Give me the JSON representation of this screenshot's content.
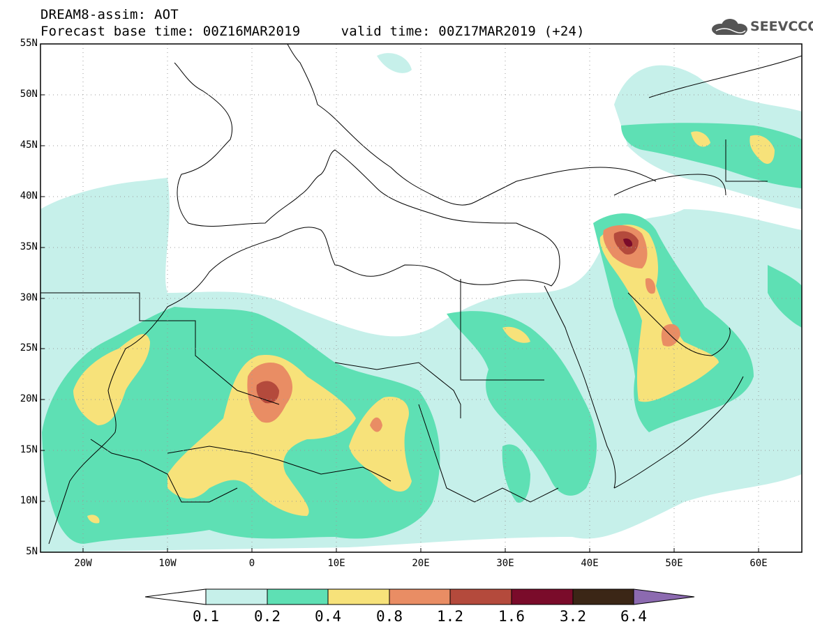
{
  "header": {
    "line1": "DREAM8-assim: AOT",
    "line2": "Forecast base time: 00Z16MAR2019     valid time: 00Z17MAR2019 (+24)"
  },
  "logo": {
    "text": "SEEVCCC",
    "icon": "cloud-icon"
  },
  "map": {
    "lat_labels": [
      "55N",
      "50N",
      "45N",
      "40N",
      "35N",
      "30N",
      "25N",
      "20N",
      "15N",
      "10N",
      "5N"
    ],
    "lon_labels": [
      "20W",
      "10W",
      "0",
      "10E",
      "20E",
      "30E",
      "40E",
      "50E",
      "60E"
    ],
    "lat_range": [
      5,
      55
    ],
    "lon_range": [
      -25,
      65
    ],
    "grid": "dotted"
  },
  "colorbar": {
    "labels": [
      "0.1",
      "0.2",
      "0.4",
      "0.8",
      "1.2",
      "1.6",
      "3.2",
      "6.4"
    ],
    "colors": [
      "#ffffff",
      "#c6f0ea",
      "#5ee0b4",
      "#f7e27a",
      "#e98d64",
      "#b44a3c",
      "#7a0b2a",
      "#3b2616",
      "#8c6ab0"
    ]
  }
}
